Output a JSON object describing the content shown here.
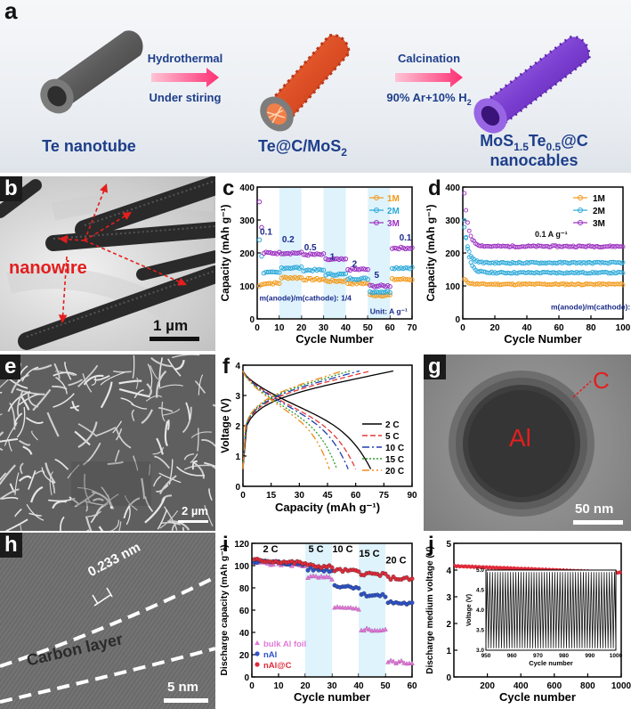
{
  "panel_labels": {
    "a": "a",
    "b": "b",
    "c": "c",
    "d": "d",
    "e": "e",
    "f": "f",
    "g": "g",
    "h": "h",
    "i": "i",
    "j": "j"
  },
  "scheme": {
    "item1": "Te nanotube",
    "arrow1_top": "Hydrothermal",
    "arrow1_bottom": "Under stiring",
    "item2": "Te@C/MoS",
    "item2_sub": "2",
    "arrow2_top": "Calcination",
    "arrow2_bottom": "90% Ar+10% H",
    "arrow2_bottom_sub": "2",
    "item3_line1_a": "MoS",
    "item3_line1_sub1": "1.5",
    "item3_line1_b": "Te",
    "item3_line1_sub2": "0.5",
    "item3_line1_c": "@C",
    "item3_line2": "nanocables",
    "colors": {
      "tube": "#6c6c6c",
      "te_c_mos2": "#e2542b",
      "mos_te_c": "#7e3fd0",
      "arrow": "#ff3d7f",
      "text": "#1d3e8a"
    }
  },
  "panel_b": {
    "label": "nanowire",
    "scale": "1 µm"
  },
  "panel_e": {
    "scale": "2 µm"
  },
  "panel_g": {
    "particle": "Al",
    "shell": "C",
    "scale": "50 nm"
  },
  "panel_h": {
    "spacing": "0.233 nm",
    "layer": "Carbon layer",
    "scale": "5 nm"
  },
  "chart_data": [
    {
      "id": "c",
      "type": "scatter",
      "xlabel": "Cycle Number",
      "ylabel": "Capacity (mAh g⁻¹)",
      "xlim": [
        0,
        70
      ],
      "ylim": [
        0,
        400
      ],
      "xticks": [
        "0",
        "10",
        "20",
        "30",
        "40",
        "50",
        "60",
        "70"
      ],
      "yticks": [
        "0",
        "100",
        "200",
        "300",
        "400"
      ],
      "rate_labels": [
        {
          "text": "0.1",
          "x": 4,
          "y": 255
        },
        {
          "text": "0.2",
          "x": 14,
          "y": 232
        },
        {
          "text": "0.5",
          "x": 24,
          "y": 208
        },
        {
          "text": "1",
          "x": 34,
          "y": 180
        },
        {
          "text": "2",
          "x": 44,
          "y": 158
        },
        {
          "text": "5",
          "x": 54,
          "y": 125
        },
        {
          "text": "0.1",
          "x": 67,
          "y": 238
        }
      ],
      "shaded_bands": [
        [
          10,
          20
        ],
        [
          30,
          40
        ],
        [
          50,
          60
        ]
      ],
      "annotation": "m(anode)/m(cathode): 1/4",
      "unit_note": "Unit: A g⁻¹",
      "legend_position": "top-right",
      "series": [
        {
          "name": "1M",
          "color": "#f29a1a",
          "levels": [
            [
              1,
              10,
              108
            ],
            [
              11,
              20,
              125
            ],
            [
              21,
              30,
              120
            ],
            [
              31,
              40,
              115
            ],
            [
              41,
              50,
              108
            ],
            [
              51,
              60,
              72
            ],
            [
              61,
              70,
              120
            ]
          ],
          "start": 100
        },
        {
          "name": "2M",
          "color": "#2aa8d8",
          "levels": [
            [
              1,
              10,
              140
            ],
            [
              11,
              20,
              155
            ],
            [
              21,
              30,
              148
            ],
            [
              31,
              40,
              135
            ],
            [
              41,
              50,
              122
            ],
            [
              51,
              60,
              82
            ],
            [
              61,
              70,
              155
            ]
          ],
          "start": 240
        },
        {
          "name": "3M",
          "color": "#9b2fc0",
          "levels": [
            [
              1,
              10,
              200
            ],
            [
              11,
              20,
              200
            ],
            [
              21,
              30,
              195
            ],
            [
              31,
              40,
              180
            ],
            [
              41,
              50,
              150
            ],
            [
              51,
              60,
              100
            ],
            [
              61,
              70,
              215
            ]
          ],
          "start": 355
        }
      ]
    },
    {
      "id": "d",
      "type": "scatter",
      "xlabel": "Cycle Number",
      "ylabel": "Capacity (mAh g⁻¹)",
      "xlim": [
        0,
        100
      ],
      "ylim": [
        0,
        400
      ],
      "xticks": [
        "0",
        "20",
        "40",
        "60",
        "80",
        "100"
      ],
      "yticks": [
        "0",
        "100",
        "200",
        "300",
        "400"
      ],
      "rate_note": "0.1 A g⁻¹",
      "annotation": "m(anode)/m(cathode): 1/4",
      "legend_position": "top-right",
      "series": [
        {
          "name": "1M",
          "color": "#f29a1a",
          "start": 120,
          "level": 105
        },
        {
          "name": "2M",
          "color": "#2aa8d8",
          "start": 300,
          "level": 140
        },
        {
          "name": "3M",
          "color": "#9b2fc0",
          "start": 380,
          "level": 220
        }
      ],
      "extra_series": {
        "color": "#2aa8d8",
        "start": 280,
        "level": 170
      }
    },
    {
      "id": "f",
      "type": "line",
      "xlabel": "Capacity (mAh g⁻¹)",
      "ylabel": "Voltage (V)",
      "xlim": [
        0,
        90
      ],
      "ylim": [
        0,
        4.2
      ],
      "xticks": [
        "0",
        "15",
        "30",
        "45",
        "60",
        "75",
        "90"
      ],
      "yticks": [
        "0",
        "1",
        "2",
        "3",
        "4"
      ],
      "legend_position": "center-right",
      "series": [
        {
          "name": "2 C",
          "color": "#000000",
          "dash": "",
          "cap_charge": 80,
          "cap_discharge": 68
        },
        {
          "name": "5 C",
          "color": "#e53935",
          "dash": "6,3",
          "cap_charge": 68,
          "cap_discharge": 60
        },
        {
          "name": "10 C",
          "color": "#1e3fb0",
          "dash": "8,3,2,3",
          "cap_charge": 62,
          "cap_discharge": 56
        },
        {
          "name": "15 C",
          "color": "#2e9a2e",
          "dash": "2,2",
          "cap_charge": 57,
          "cap_discharge": 50
        },
        {
          "name": "20 C",
          "color": "#f08a1c",
          "dash": "8,3,2,3,2,3",
          "cap_charge": 53,
          "cap_discharge": 46
        }
      ]
    },
    {
      "id": "i",
      "type": "scatter",
      "xlabel": "Cycle number",
      "ylabel": "Discharge capacity (mAh g⁻¹)",
      "xlim": [
        0,
        60
      ],
      "ylim": [
        0,
        120
      ],
      "xticks": [
        "0",
        "10",
        "20",
        "30",
        "40",
        "50",
        "60"
      ],
      "yticks": [
        "0",
        "20",
        "40",
        "60",
        "80",
        "100",
        "120"
      ],
      "rate_labels": [
        {
          "text": "2 C",
          "x": 7,
          "y": 112
        },
        {
          "text": "5 C",
          "x": 24,
          "y": 112
        },
        {
          "text": "10 C",
          "x": 34,
          "y": 112
        },
        {
          "text": "15 C",
          "x": 44,
          "y": 108
        },
        {
          "text": "20 C",
          "x": 54,
          "y": 102
        }
      ],
      "shaded_bands": [
        [
          20,
          30
        ],
        [
          40,
          50
        ]
      ],
      "legend_position": "bottom-left",
      "series": [
        {
          "name": "bulk Al foil",
          "color": "#e07ad8",
          "marker": "triangle",
          "levels": [
            [
              1,
              20,
              103
            ],
            [
              21,
              30,
              90
            ],
            [
              31,
              40,
              62
            ],
            [
              41,
              50,
              43
            ],
            [
              51,
              60,
              14
            ]
          ]
        },
        {
          "name": "nAl",
          "color": "#2e52c8",
          "marker": "circle",
          "levels": [
            [
              1,
              20,
              104
            ],
            [
              21,
              30,
              97
            ],
            [
              31,
              40,
              82
            ],
            [
              41,
              50,
              74
            ],
            [
              51,
              60,
              67
            ]
          ]
        },
        {
          "name": "nAl@C",
          "color": "#e02a3a",
          "marker": "circle",
          "levels": [
            [
              1,
              20,
              105
            ],
            [
              21,
              30,
              100
            ],
            [
              31,
              40,
              96
            ],
            [
              41,
              50,
              93
            ],
            [
              51,
              60,
              89
            ]
          ]
        }
      ]
    },
    {
      "id": "j",
      "type": "line",
      "xlabel": "Cycle number",
      "ylabel": "Discharge medium voltage (V)",
      "xlim": [
        0,
        1000
      ],
      "ylim": [
        0,
        5
      ],
      "xticks": [
        "200",
        "400",
        "600",
        "800",
        "1000"
      ],
      "yticks": [
        "0",
        "1",
        "2",
        "3",
        "4",
        "5"
      ],
      "series": [
        {
          "name": "",
          "color": "#e02a3a",
          "start": 4.15,
          "end": 3.9
        }
      ],
      "inset": {
        "xlabel": "Cycle number",
        "ylabel": "Voltage (V)",
        "xlim": [
          950,
          1000
        ],
        "ylim": [
          3.0,
          5.0
        ],
        "xticks": [
          "950",
          "960",
          "970",
          "980",
          "990",
          "1000"
        ],
        "yticks": [
          "3.0",
          "3.5",
          "4.0",
          "4.5",
          "5.0"
        ],
        "cycles": 50,
        "vmin": 3.05,
        "vmax": 4.95
      }
    }
  ]
}
